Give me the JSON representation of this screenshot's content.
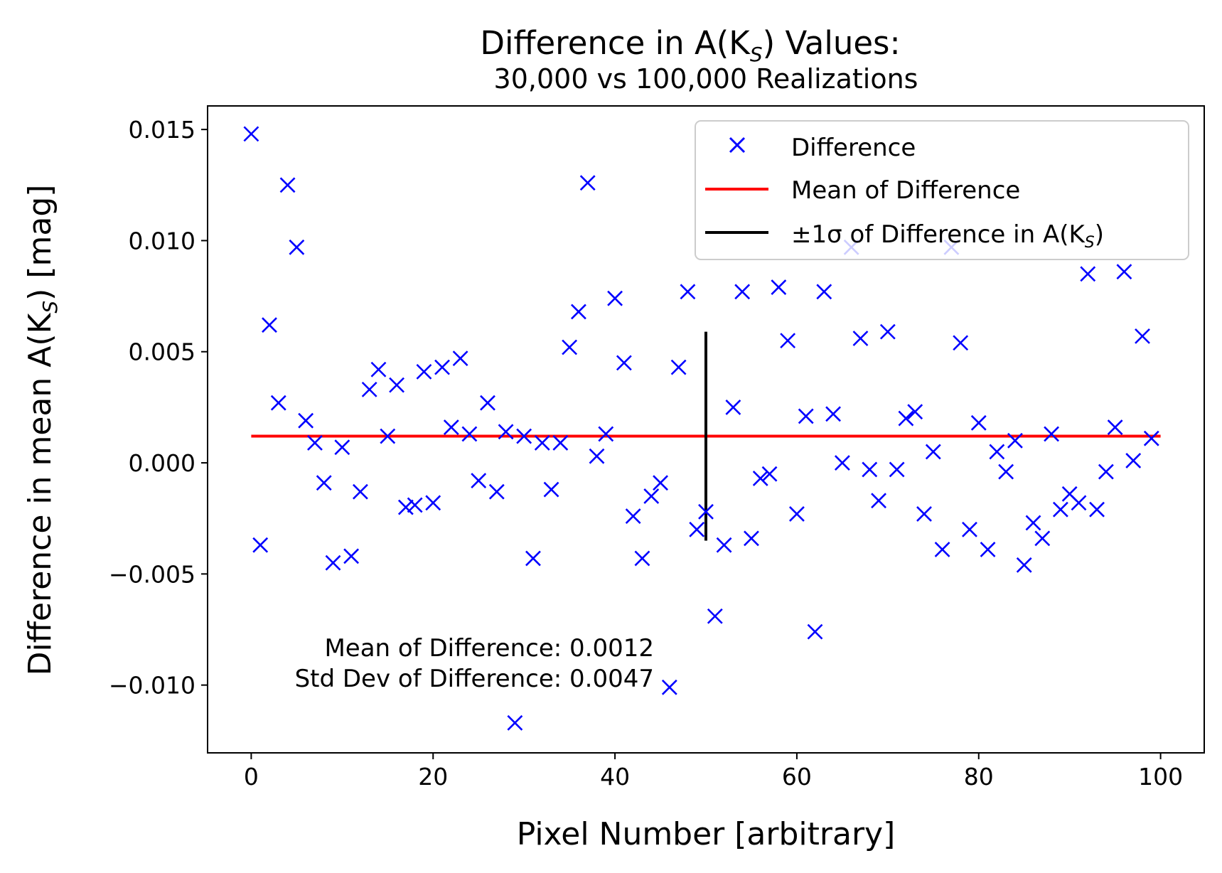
{
  "chart_data": {
    "type": "scatter",
    "title_main": "Difference in A(K",
    "title_main_sub": "S",
    "title_main_tail": ") Values:",
    "title_sub": "30,000 vs 100,000 Realizations",
    "xlabel": "Pixel Number [arbitrary]",
    "ylabel_main": "Difference in mean A(K",
    "ylabel_sub": "S",
    "ylabel_tail": ") [mag]",
    "xlim": [
      -4.8,
      104.8
    ],
    "ylim": [
      -0.01305,
      0.01606
    ],
    "xticks": [
      0,
      20,
      40,
      60,
      80,
      100
    ],
    "xtick_labels": [
      "0",
      "20",
      "40",
      "60",
      "80",
      "100"
    ],
    "yticks": [
      0.015,
      0.01,
      0.005,
      0.0,
      -0.005,
      -0.01
    ],
    "ytick_labels": [
      "0.015",
      "0.010",
      "0.005",
      "0.000",
      "−0.005",
      "−0.010"
    ],
    "grid": false,
    "colors": {
      "points": "#0000ff",
      "mean_line": "#ff0000",
      "sigma_line": "#000000"
    },
    "series": [
      {
        "name": "Difference",
        "x": [
          0,
          1,
          2,
          3,
          4,
          5,
          6,
          7,
          8,
          9,
          10,
          11,
          12,
          13,
          14,
          15,
          16,
          17,
          18,
          19,
          20,
          21,
          22,
          23,
          24,
          25,
          26,
          27,
          28,
          29,
          30,
          31,
          32,
          33,
          34,
          35,
          36,
          37,
          38,
          39,
          40,
          41,
          42,
          43,
          44,
          45,
          46,
          47,
          48,
          49,
          50,
          51,
          52,
          53,
          54,
          55,
          56,
          57,
          58,
          59,
          60,
          61,
          62,
          63,
          64,
          65,
          66,
          67,
          68,
          69,
          70,
          71,
          72,
          73,
          74,
          75,
          76,
          77,
          78,
          79,
          80,
          81,
          82,
          83,
          84,
          85,
          86,
          87,
          88,
          89,
          90,
          91,
          92,
          93,
          94,
          95,
          96,
          97,
          98,
          99
        ],
        "y": [
          0.0148,
          -0.0037,
          0.0062,
          0.0027,
          0.0125,
          0.0097,
          0.0019,
          0.0009,
          -0.0009,
          -0.0045,
          0.0007,
          -0.0042,
          -0.0013,
          0.0033,
          0.0042,
          0.0012,
          0.0035,
          -0.002,
          -0.0019,
          0.0041,
          -0.0018,
          0.0043,
          0.0016,
          0.0047,
          0.0013,
          -0.0008,
          0.0027,
          -0.0013,
          0.0014,
          -0.0117,
          0.0012,
          -0.0043,
          0.0009,
          -0.0012,
          0.0009,
          0.0052,
          0.0068,
          0.0126,
          0.0003,
          0.0013,
          0.0074,
          0.0045,
          -0.0024,
          -0.0043,
          -0.0015,
          -0.0009,
          -0.0101,
          0.0043,
          0.0077,
          -0.003,
          -0.0022,
          -0.0069,
          -0.0037,
          0.0025,
          0.0077,
          -0.0034,
          -0.0007,
          -0.0005,
          0.0079,
          0.0055,
          -0.0023,
          0.0021,
          -0.0076,
          0.0077,
          0.0022,
          0.0,
          0.0097,
          0.0056,
          -0.0003,
          -0.0017,
          0.0059,
          -0.0003,
          0.002,
          0.0023,
          -0.0023,
          0.0005,
          -0.0039,
          0.0097,
          0.0054,
          -0.003,
          0.0018,
          -0.0039,
          0.0005,
          -0.0004,
          0.001,
          -0.0046,
          -0.0027,
          -0.0034,
          0.0013,
          -0.0021,
          -0.0014,
          -0.0018,
          0.0085,
          -0.0021,
          -0.0004,
          0.0016,
          0.0086,
          0.0001,
          0.0057,
          0.0011
        ],
        "marker": "x"
      },
      {
        "name": "Mean of Difference",
        "type": "line",
        "x": [
          0,
          100
        ],
        "y": [
          0.0012,
          0.0012
        ]
      },
      {
        "name": "±1σ of Difference in A(K",
        "name_sub": "S",
        "name_tail": ")",
        "type": "vline",
        "x": [
          50,
          50
        ],
        "y": [
          -0.0035,
          0.0059
        ]
      }
    ],
    "legend": {
      "placement": "upper-right",
      "entries": [
        "Difference",
        "Mean of Difference",
        "±1σ of Difference in A(KS)"
      ]
    },
    "annotation": {
      "line1": "Mean of Difference: 0.0012",
      "line2": "Std Dev of Difference: 0.0047"
    }
  }
}
